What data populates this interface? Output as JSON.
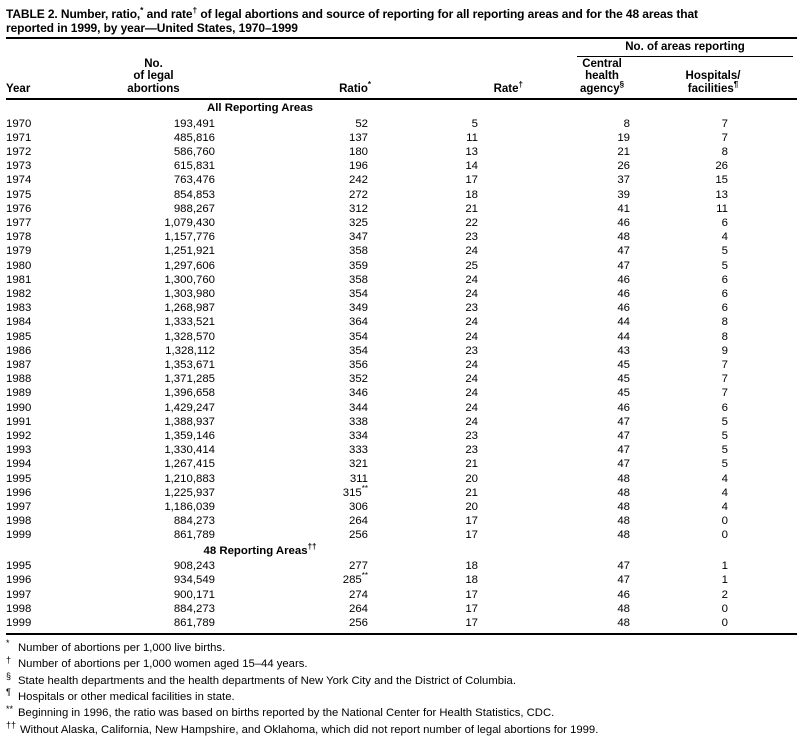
{
  "title": {
    "p1": "TABLE 2. Number, ratio,",
    "s1": "*",
    "p2": " and rate",
    "s2": "†",
    "p3": " of legal abortions and source of reporting for all reporting areas and for the 48 areas that",
    "line2": "reported in 1999, by year—United States, 1970–1999"
  },
  "table": {
    "col_headers": {
      "year": "Year",
      "abortions_l1": "No.",
      "abortions_l2": "of legal",
      "abortions_l3": "abortions",
      "ratio": "Ratio",
      "ratio_sup": "*",
      "rate": "Rate",
      "rate_sup": "†",
      "areas_group": "No. of areas reporting",
      "central_l1": "Central",
      "central_l2": "health",
      "central_l3": "agency",
      "central_sup": "§",
      "hospitals_l1": "Hospitals/",
      "hospitals_l2": "facilities",
      "hospitals_sup": "¶"
    },
    "sections": [
      {
        "label": "All Reporting Areas",
        "label_sup": "",
        "rows": [
          {
            "year": "1970",
            "abortions": "193,491",
            "ratio": "52",
            "ratio_sup": "",
            "rate": "5",
            "central": "8",
            "hospitals": "7"
          },
          {
            "year": "1971",
            "abortions": "485,816",
            "ratio": "137",
            "ratio_sup": "",
            "rate": "11",
            "central": "19",
            "hospitals": "7"
          },
          {
            "year": "1972",
            "abortions": "586,760",
            "ratio": "180",
            "ratio_sup": "",
            "rate": "13",
            "central": "21",
            "hospitals": "8"
          },
          {
            "year": "1973",
            "abortions": "615,831",
            "ratio": "196",
            "ratio_sup": "",
            "rate": "14",
            "central": "26",
            "hospitals": "26"
          },
          {
            "year": "1974",
            "abortions": "763,476",
            "ratio": "242",
            "ratio_sup": "",
            "rate": "17",
            "central": "37",
            "hospitals": "15"
          },
          {
            "year": "1975",
            "abortions": "854,853",
            "ratio": "272",
            "ratio_sup": "",
            "rate": "18",
            "central": "39",
            "hospitals": "13"
          },
          {
            "year": "1976",
            "abortions": "988,267",
            "ratio": "312",
            "ratio_sup": "",
            "rate": "21",
            "central": "41",
            "hospitals": "11"
          },
          {
            "year": "1977",
            "abortions": "1,079,430",
            "ratio": "325",
            "ratio_sup": "",
            "rate": "22",
            "central": "46",
            "hospitals": "6"
          },
          {
            "year": "1978",
            "abortions": "1,157,776",
            "ratio": "347",
            "ratio_sup": "",
            "rate": "23",
            "central": "48",
            "hospitals": "4"
          },
          {
            "year": "1979",
            "abortions": "1,251,921",
            "ratio": "358",
            "ratio_sup": "",
            "rate": "24",
            "central": "47",
            "hospitals": "5"
          },
          {
            "year": "1980",
            "abortions": "1,297,606",
            "ratio": "359",
            "ratio_sup": "",
            "rate": "25",
            "central": "47",
            "hospitals": "5"
          },
          {
            "year": "1981",
            "abortions": "1,300,760",
            "ratio": "358",
            "ratio_sup": "",
            "rate": "24",
            "central": "46",
            "hospitals": "6"
          },
          {
            "year": "1982",
            "abortions": "1,303,980",
            "ratio": "354",
            "ratio_sup": "",
            "rate": "24",
            "central": "46",
            "hospitals": "6"
          },
          {
            "year": "1983",
            "abortions": "1,268,987",
            "ratio": "349",
            "ratio_sup": "",
            "rate": "23",
            "central": "46",
            "hospitals": "6"
          },
          {
            "year": "1984",
            "abortions": "1,333,521",
            "ratio": "364",
            "ratio_sup": "",
            "rate": "24",
            "central": "44",
            "hospitals": "8"
          },
          {
            "year": "1985",
            "abortions": "1,328,570",
            "ratio": "354",
            "ratio_sup": "",
            "rate": "24",
            "central": "44",
            "hospitals": "8"
          },
          {
            "year": "1986",
            "abortions": "1,328,112",
            "ratio": "354",
            "ratio_sup": "",
            "rate": "23",
            "central": "43",
            "hospitals": "9"
          },
          {
            "year": "1987",
            "abortions": "1,353,671",
            "ratio": "356",
            "ratio_sup": "",
            "rate": "24",
            "central": "45",
            "hospitals": "7"
          },
          {
            "year": "1988",
            "abortions": "1,371,285",
            "ratio": "352",
            "ratio_sup": "",
            "rate": "24",
            "central": "45",
            "hospitals": "7"
          },
          {
            "year": "1989",
            "abortions": "1,396,658",
            "ratio": "346",
            "ratio_sup": "",
            "rate": "24",
            "central": "45",
            "hospitals": "7"
          },
          {
            "year": "1990",
            "abortions": "1,429,247",
            "ratio": "344",
            "ratio_sup": "",
            "rate": "24",
            "central": "46",
            "hospitals": "6"
          },
          {
            "year": "1991",
            "abortions": "1,388,937",
            "ratio": "338",
            "ratio_sup": "",
            "rate": "24",
            "central": "47",
            "hospitals": "5"
          },
          {
            "year": "1992",
            "abortions": "1,359,146",
            "ratio": "334",
            "ratio_sup": "",
            "rate": "23",
            "central": "47",
            "hospitals": "5"
          },
          {
            "year": "1993",
            "abortions": "1,330,414",
            "ratio": "333",
            "ratio_sup": "",
            "rate": "23",
            "central": "47",
            "hospitals": "5"
          },
          {
            "year": "1994",
            "abortions": "1,267,415",
            "ratio": "321",
            "ratio_sup": "",
            "rate": "21",
            "central": "47",
            "hospitals": "5"
          },
          {
            "year": "1995",
            "abortions": "1,210,883",
            "ratio": "311",
            "ratio_sup": "",
            "rate": "20",
            "central": "48",
            "hospitals": "4"
          },
          {
            "year": "1996",
            "abortions": "1,225,937",
            "ratio": "315",
            "ratio_sup": "**",
            "rate": "21",
            "central": "48",
            "hospitals": "4"
          },
          {
            "year": "1997",
            "abortions": "1,186,039",
            "ratio": "306",
            "ratio_sup": "",
            "rate": "20",
            "central": "48",
            "hospitals": "4"
          },
          {
            "year": "1998",
            "abortions": "884,273",
            "ratio": "264",
            "ratio_sup": "",
            "rate": "17",
            "central": "48",
            "hospitals": "0"
          },
          {
            "year": "1999",
            "abortions": "861,789",
            "ratio": "256",
            "ratio_sup": "",
            "rate": "17",
            "central": "48",
            "hospitals": "0"
          }
        ]
      },
      {
        "label": "48 Reporting Areas",
        "label_sup": "††",
        "rows": [
          {
            "year": "1995",
            "abortions": "908,243",
            "ratio": "277",
            "ratio_sup": "",
            "rate": "18",
            "central": "47",
            "hospitals": "1"
          },
          {
            "year": "1996",
            "abortions": "934,549",
            "ratio": "285",
            "ratio_sup": "**",
            "rate": "18",
            "central": "47",
            "hospitals": "1"
          },
          {
            "year": "1997",
            "abortions": "900,171",
            "ratio": "274",
            "ratio_sup": "",
            "rate": "17",
            "central": "46",
            "hospitals": "2"
          },
          {
            "year": "1998",
            "abortions": "884,273",
            "ratio": "264",
            "ratio_sup": "",
            "rate": "17",
            "central": "48",
            "hospitals": "0"
          },
          {
            "year": "1999",
            "abortions": "861,789",
            "ratio": "256",
            "ratio_sup": "",
            "rate": "17",
            "central": "48",
            "hospitals": "0"
          }
        ]
      }
    ]
  },
  "footnotes": [
    {
      "marker": "*",
      "text": "Number of abortions per 1,000 live births."
    },
    {
      "marker": "†",
      "text": "Number of abortions per 1,000 women aged 15–44 years."
    },
    {
      "marker": "§",
      "text": "State health departments and the health departments of New York City and the District of Columbia."
    },
    {
      "marker": "¶",
      "text": "Hospitals or other medical facilities in state."
    },
    {
      "marker": "**",
      "text": "Beginning in 1996, the ratio was based on births reported by the National Center for Health Statistics, CDC."
    },
    {
      "marker": "††",
      "text": "Without Alaska, California, New Hampshire, and Oklahoma, which did not report number of legal abortions for 1999."
    }
  ],
  "colors": {
    "text": "#000000",
    "background": "#ffffff",
    "rule": "#000000"
  }
}
